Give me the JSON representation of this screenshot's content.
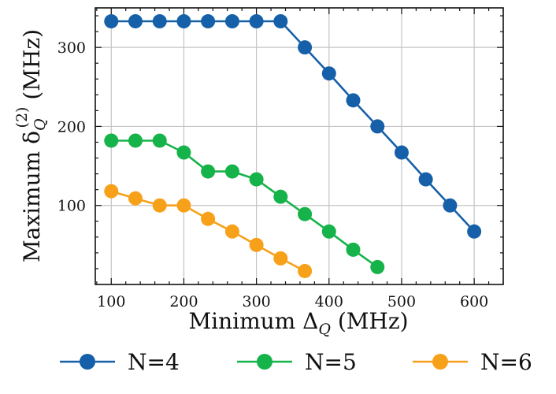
{
  "chart_data": {
    "type": "line",
    "title": "",
    "xlabel_prefix": "Minimum Δ",
    "xlabel_sub": "Q",
    "xlabel_suffix": " (MHz)",
    "ylabel_prefix": "Maximum δ",
    "ylabel_sub": "Q",
    "ylabel_sup": "(2)",
    "ylabel_suffix": " (MHz)",
    "xlim": [
      78,
      640
    ],
    "ylim": [
      0,
      350
    ],
    "xticks": [
      100,
      200,
      300,
      400,
      500,
      600
    ],
    "yticks": [
      100,
      200,
      300
    ],
    "grid": true,
    "legend_position": "bottom",
    "series": [
      {
        "name": "N=4",
        "color": "#1560a8",
        "x": [
          100,
          133.3,
          166.7,
          200,
          233.3,
          266.7,
          300,
          333.3,
          366.7,
          400,
          433.3,
          466.7,
          500,
          533.3,
          566.7,
          600
        ],
        "y": [
          333,
          333,
          333,
          333,
          333,
          333,
          333,
          333,
          300,
          267,
          233,
          200,
          167,
          133,
          100,
          67
        ]
      },
      {
        "name": "N=5",
        "color": "#16b34a",
        "x": [
          100,
          133.3,
          166.7,
          200,
          233.3,
          266.7,
          300,
          333.3,
          366.7,
          400,
          433.3,
          466.7
        ],
        "y": [
          182,
          182,
          182,
          167,
          143,
          143,
          133,
          111,
          89,
          67,
          44,
          22
        ]
      },
      {
        "name": "N=6",
        "color": "#f7a01a",
        "x": [
          100,
          133.3,
          166.7,
          200,
          233.3,
          266.7,
          300,
          333.3,
          366.7
        ],
        "y": [
          118,
          109,
          100,
          100,
          83,
          67,
          50,
          33,
          17
        ]
      }
    ]
  }
}
